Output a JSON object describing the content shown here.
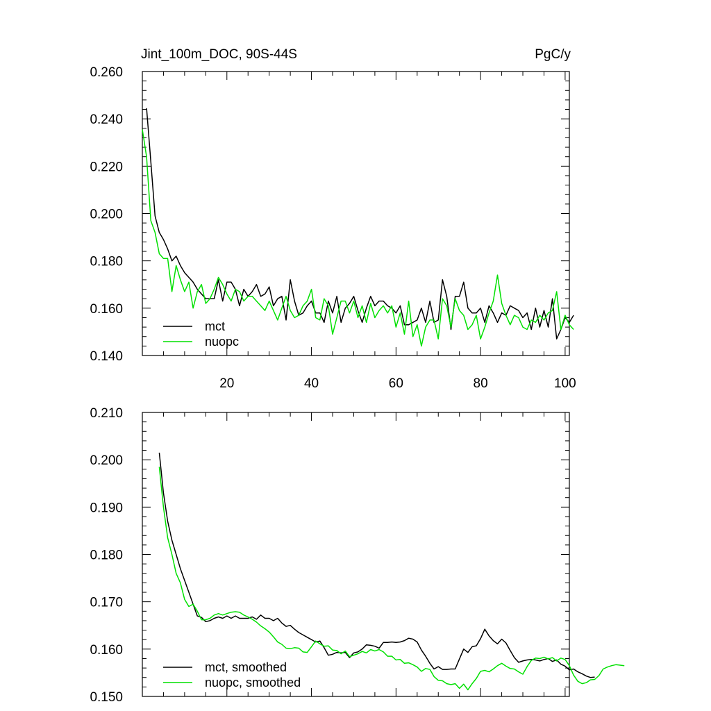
{
  "figure": {
    "title_left": "Jint_100m_DOC, 90S-44S",
    "title_right": "PgC/y"
  },
  "colors": {
    "mct": "#000000",
    "nuopc": "#00e000"
  },
  "chart_data": [
    {
      "type": "line",
      "title": "Jint_100m_DOC, 90S-44S",
      "units": "PgC/y",
      "xlim": [
        0,
        101
      ],
      "ylim": [
        0.14,
        0.26
      ],
      "x_ticks": [
        20,
        40,
        60,
        80,
        100
      ],
      "y_ticks": [
        0.14,
        0.16,
        0.18,
        0.2,
        0.22,
        0.24,
        0.26
      ],
      "y_tick_labels": [
        "0.140",
        "0.160",
        "0.180",
        "0.200",
        "0.220",
        "0.240",
        "0.260"
      ],
      "legend_position": "bottom-left",
      "grid": false,
      "series": [
        {
          "name": "mct",
          "color": "#000000",
          "x_start": 1,
          "values": [
            0.2445,
            0.222,
            0.199,
            0.192,
            0.189,
            0.185,
            0.18,
            0.182,
            0.178,
            0.175,
            0.173,
            0.171,
            0.168,
            0.166,
            0.164,
            0.164,
            0.164,
            0.172,
            0.163,
            0.171,
            0.171,
            0.168,
            0.161,
            0.168,
            0.165,
            0.167,
            0.17,
            0.165,
            0.166,
            0.169,
            0.161,
            0.164,
            0.165,
            0.155,
            0.172,
            0.163,
            0.157,
            0.158,
            0.161,
            0.163,
            0.158,
            0.158,
            0.154,
            0.163,
            0.158,
            0.165,
            0.154,
            0.16,
            0.162,
            0.165,
            0.159,
            0.154,
            0.16,
            0.165,
            0.161,
            0.163,
            0.163,
            0.161,
            0.16,
            0.158,
            0.161,
            0.153,
            0.153,
            0.154,
            0.155,
            0.16,
            0.154,
            0.163,
            0.154,
            0.155,
            0.172,
            0.165,
            0.151,
            0.165,
            0.165,
            0.171,
            0.16,
            0.158,
            0.158,
            0.16,
            0.154,
            0.161,
            0.158,
            0.154,
            0.158,
            0.157,
            0.161,
            0.16,
            0.159,
            0.156,
            0.158,
            0.151,
            0.16,
            0.152,
            0.159,
            0.152,
            0.164,
            0.147,
            0.151,
            0.156,
            0.154,
            0.157
          ]
        },
        {
          "name": "nuopc",
          "color": "#00e000",
          "x_start": 0,
          "values": [
            0.2355,
            0.224,
            0.197,
            0.192,
            0.183,
            0.181,
            0.181,
            0.167,
            0.178,
            0.172,
            0.167,
            0.171,
            0.16,
            0.167,
            0.17,
            0.162,
            0.164,
            0.168,
            0.173,
            0.17,
            0.166,
            0.163,
            0.168,
            0.167,
            0.163,
            0.165,
            0.165,
            0.163,
            0.161,
            0.159,
            0.163,
            0.159,
            0.155,
            0.16,
            0.165,
            0.159,
            0.156,
            0.157,
            0.161,
            0.163,
            0.168,
            0.156,
            0.155,
            0.164,
            0.161,
            0.149,
            0.156,
            0.163,
            0.163,
            0.158,
            0.163,
            0.156,
            0.161,
            0.154,
            0.162,
            0.156,
            0.159,
            0.161,
            0.158,
            0.161,
            0.152,
            0.158,
            0.149,
            0.163,
            0.148,
            0.153,
            0.144,
            0.152,
            0.155,
            0.155,
            0.147,
            0.164,
            0.161,
            0.152,
            0.164,
            0.159,
            0.157,
            0.151,
            0.153,
            0.157,
            0.147,
            0.152,
            0.158,
            0.163,
            0.174,
            0.162,
            0.157,
            0.153,
            0.157,
            0.156,
            0.152,
            0.151,
            0.155,
            0.154,
            0.157,
            0.155,
            0.158,
            0.159,
            0.167,
            0.151,
            0.157,
            0.153,
            0.151
          ]
        }
      ]
    },
    {
      "type": "line",
      "xlim": [
        0,
        101
      ],
      "ylim": [
        0.15,
        0.21
      ],
      "x_ticks": [
        20,
        40,
        60,
        80,
        100
      ],
      "y_ticks": [
        0.15,
        0.16,
        0.17,
        0.18,
        0.19,
        0.2,
        0.21
      ],
      "y_tick_labels": [
        "0.150",
        "0.160",
        "0.170",
        "0.180",
        "0.190",
        "0.200",
        "0.210"
      ],
      "legend_position": "bottom-left",
      "grid": false,
      "series": [
        {
          "name": "mct, smoothed",
          "color": "#000000",
          "x_start": 4,
          "values": [
            0.2015,
            0.193,
            0.187,
            0.183,
            0.18,
            0.177,
            0.1745,
            0.172,
            0.1695,
            0.167,
            0.1667,
            0.1658,
            0.166,
            0.1665,
            0.1668,
            0.1665,
            0.167,
            0.1665,
            0.167,
            0.1665,
            0.1665,
            0.1665,
            0.1668,
            0.1663,
            0.1672,
            0.1665,
            0.1665,
            0.166,
            0.1665,
            0.1655,
            0.1648,
            0.165,
            0.1642,
            0.1635,
            0.163,
            0.1625,
            0.162,
            0.1615,
            0.1617,
            0.1603,
            0.1587,
            0.1589,
            0.1593,
            0.1592,
            0.1593,
            0.1582,
            0.1592,
            0.1594,
            0.16,
            0.1609,
            0.1608,
            0.1606,
            0.1602,
            0.1614,
            0.1614,
            0.1615,
            0.1614,
            0.1615,
            0.1618,
            0.1623,
            0.1621,
            0.1615,
            0.1598,
            0.1585,
            0.157,
            0.1558,
            0.1563,
            0.1557,
            0.1557,
            0.1558,
            0.1558,
            0.1579,
            0.16,
            0.1593,
            0.1605,
            0.1607,
            0.1622,
            0.1642,
            0.1628,
            0.1618,
            0.1611,
            0.1621,
            0.1613,
            0.1597,
            0.1582,
            0.1572,
            0.1575,
            0.1577,
            0.1578,
            0.1577,
            0.1575,
            0.1578,
            0.158,
            0.1574,
            0.1577,
            0.1568,
            0.1564,
            0.1556,
            0.1558,
            0.1552,
            0.1548,
            0.1543,
            0.154,
            0.1541
          ]
        },
        {
          "name": "nuopc, smoothed",
          "color": "#00e000",
          "x_start": 4,
          "values": [
            0.1985,
            0.19,
            0.1835,
            0.18,
            0.176,
            0.174,
            0.1705,
            0.169,
            0.1695,
            0.168,
            0.1662,
            0.1662,
            0.1665,
            0.1672,
            0.1675,
            0.1672,
            0.1675,
            0.1678,
            0.1679,
            0.1678,
            0.1672,
            0.1668,
            0.1663,
            0.1657,
            0.1649,
            0.1643,
            0.1636,
            0.1626,
            0.1615,
            0.161,
            0.1602,
            0.1601,
            0.1603,
            0.1602,
            0.1594,
            0.1593,
            0.1605,
            0.1617,
            0.1611,
            0.1606,
            0.1607,
            0.1598,
            0.1597,
            0.159,
            0.1596,
            0.1584,
            0.1587,
            0.159,
            0.1595,
            0.1592,
            0.1599,
            0.1596,
            0.1599,
            0.1594,
            0.1585,
            0.1585,
            0.1577,
            0.1578,
            0.157,
            0.1571,
            0.1567,
            0.1562,
            0.1553,
            0.1559,
            0.1557,
            0.1542,
            0.1534,
            0.1533,
            0.1527,
            0.1525,
            0.1527,
            0.1517,
            0.1526,
            0.1514,
            0.1527,
            0.1538,
            0.1553,
            0.1555,
            0.1552,
            0.1558,
            0.1565,
            0.157,
            0.1564,
            0.1559,
            0.1558,
            0.1552,
            0.1547,
            0.1563,
            0.1576,
            0.1581,
            0.158,
            0.1583,
            0.1579,
            0.1582,
            0.1575,
            0.1581,
            0.1578,
            0.1565,
            0.1545,
            0.1532,
            0.1527,
            0.1529,
            0.1535,
            0.1536,
            0.1544,
            0.1558,
            0.1562,
            0.1565,
            0.1567,
            0.1566,
            0.1565
          ]
        }
      ]
    }
  ]
}
